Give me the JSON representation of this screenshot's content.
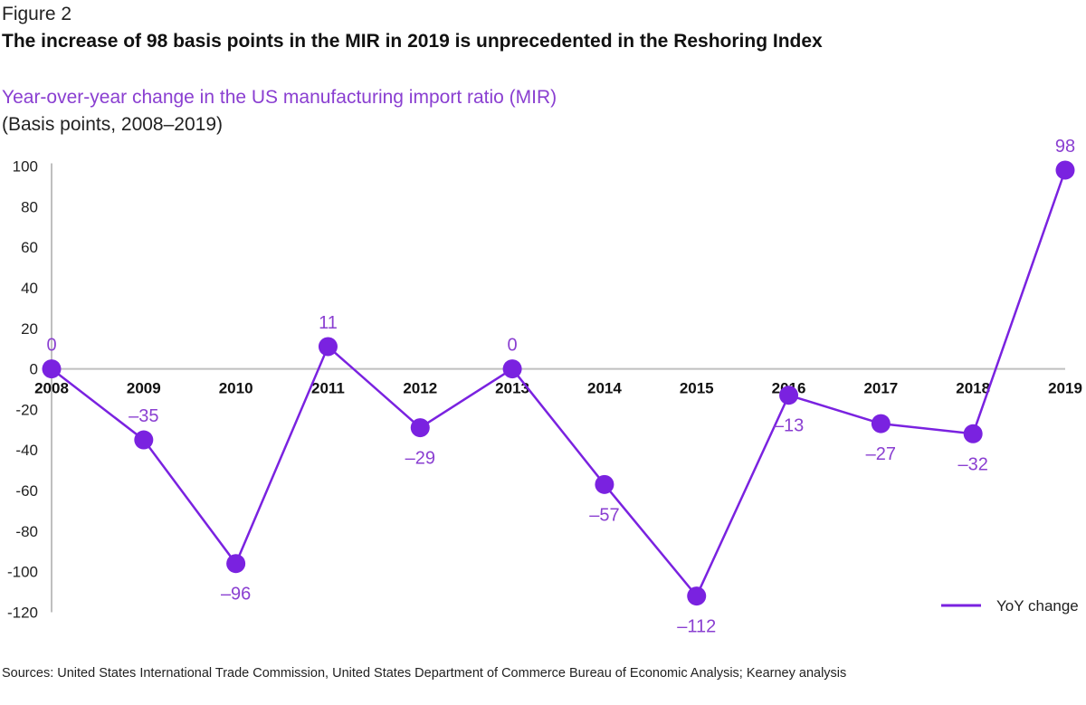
{
  "figure_label": "Figure 2",
  "title": "The increase of 98 basis points in the MIR in 2019 is unprecedented in the Reshoring Index",
  "subtitle": "Year-over-year change in the US manufacturing import ratio (MIR)",
  "units": "(Basis points, 2008–2019)",
  "sources": "Sources: United States International Trade Commission, United States Department of Commerce Bureau of Economic Analysis; Kearney analysis",
  "colors": {
    "series": "#7a22e0",
    "label": "#8a3fd1",
    "axis": "#bfbfbf"
  },
  "chart_data": {
    "type": "line",
    "title": "Year-over-year change in the US manufacturing import ratio (MIR)",
    "xlabel": "",
    "ylabel": "",
    "categories": [
      "2008",
      "2009",
      "2010",
      "2011",
      "2012",
      "2013",
      "2014",
      "2015",
      "2016",
      "2017",
      "2018",
      "2019"
    ],
    "series": [
      {
        "name": "YoY change",
        "values": [
          0,
          -35,
          -96,
          11,
          -29,
          0,
          -57,
          -112,
          -13,
          -27,
          -32,
          98
        ],
        "labels": [
          "0",
          "–35",
          "–96",
          "11",
          "–29",
          "0",
          "–57",
          "–112",
          "–13",
          "–27",
          "–32",
          "98"
        ]
      }
    ],
    "ylim": [
      -120,
      100
    ],
    "yticks": [
      100,
      80,
      60,
      40,
      20,
      0,
      -20,
      -40,
      -60,
      -80,
      -100,
      -120
    ],
    "ytick_labels": [
      "100",
      "80",
      "60",
      "40",
      "20",
      "0",
      "-20",
      "-40",
      "-60",
      "-80",
      "-100",
      "-120"
    ],
    "grid": false,
    "legend": "bottom-right"
  }
}
